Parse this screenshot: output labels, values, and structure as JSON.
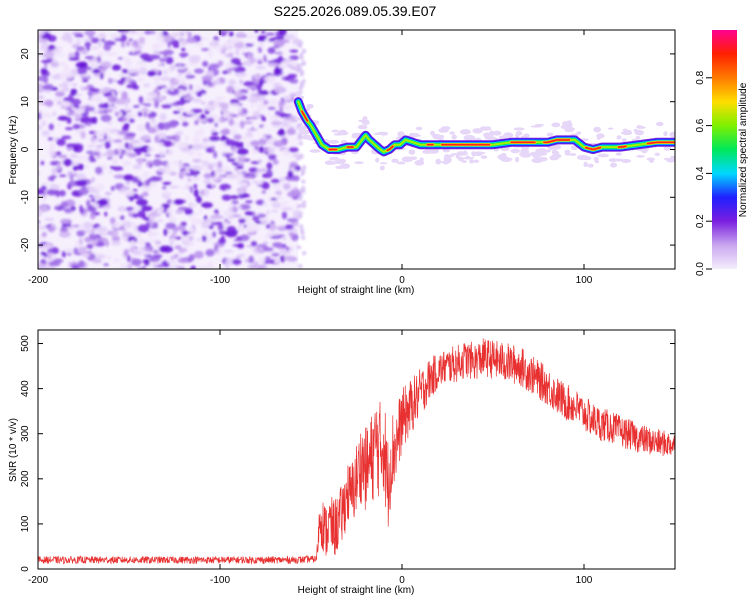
{
  "title": "S225.2026.089.05.39.E07",
  "chart_data": [
    {
      "type": "heatmap",
      "xlabel": "Height of straight line (km)",
      "ylabel": "Frequency (Hz)",
      "xlim": [
        -200,
        150
      ],
      "ylim": [
        -25,
        25
      ],
      "xticks": [
        -200,
        -100,
        0,
        100
      ],
      "xtick_labels": [
        "-200",
        "-100",
        "0",
        "100"
      ],
      "yticks": [
        -20,
        -10,
        0,
        10,
        20
      ],
      "ytick_labels": [
        "-20",
        "-10",
        "0",
        "10",
        "20"
      ],
      "noise_region_x": [
        -200,
        -57
      ],
      "signal_ridge": {
        "x": [
          -57,
          -55,
          -52,
          -50,
          -47,
          -44,
          -40,
          -35,
          -30,
          -25,
          -20,
          -18,
          -15,
          -12,
          -10,
          -7,
          -4,
          -1,
          2,
          6,
          10,
          14,
          20,
          30,
          40,
          50,
          60,
          70,
          80,
          85,
          90,
          95,
          100,
          105,
          110,
          120,
          130,
          140,
          150
        ],
        "y": [
          10,
          8,
          6,
          5,
          3,
          1,
          0,
          0,
          0.5,
          0.5,
          3,
          2,
          1,
          0,
          -0.5,
          0,
          1,
          1,
          2,
          1.5,
          1,
          1,
          1,
          1,
          1,
          1,
          1.5,
          1.5,
          1.5,
          2,
          2,
          2,
          0.5,
          0,
          0.5,
          0.5,
          1,
          1.5,
          1.5
        ],
        "peak_amplitude_segments": [
          [
            -55,
            -52
          ],
          [
            -40,
            -36
          ],
          [
            -30,
            -27
          ],
          [
            -8,
            -5
          ],
          [
            14,
            17
          ],
          [
            22,
            48
          ],
          [
            60,
            73
          ],
          [
            78,
            92
          ],
          [
            101,
            109
          ],
          [
            119,
            123
          ],
          [
            135,
            150
          ]
        ]
      },
      "colorbar": {
        "label": "Normalized spectral amplitude",
        "range": [
          0,
          1
        ],
        "ticks": [
          0.0,
          0.2,
          0.4,
          0.6,
          0.8
        ],
        "tick_labels": [
          "0.0",
          "0.2",
          "0.4",
          "0.6",
          "0.8"
        ],
        "colors": [
          "#f4eefc",
          "#c9a6ef",
          "#7a1fe0",
          "#2020ff",
          "#00d8ff",
          "#00e85a",
          "#7ef000",
          "#ffdd00",
          "#ff7a00",
          "#ff2000",
          "#ff0090"
        ]
      }
    },
    {
      "type": "line",
      "xlabel": "Height of straight line (km)",
      "ylabel": "SNR (10 * v/v)",
      "xlim": [
        -200,
        150
      ],
      "ylim": [
        0,
        530
      ],
      "xticks": [
        -200,
        -100,
        0,
        100
      ],
      "xtick_labels": [
        "-200",
        "-100",
        "0",
        "100"
      ],
      "yticks": [
        0,
        100,
        200,
        300,
        400,
        500
      ],
      "ytick_labels": [
        "0",
        "100",
        "200",
        "300",
        "400",
        "500"
      ],
      "series": [
        {
          "name": "SNR",
          "color": "#e83030",
          "envelope": {
            "x": [
              -200,
              -150,
              -100,
              -60,
              -47,
              -45,
              -42,
              -40,
              -37,
              -33,
              -30,
              -28,
              -25,
              -22,
              -20,
              -17,
              -14,
              -12,
              -10,
              -8,
              -6,
              -3,
              0,
              5,
              10,
              15,
              20,
              25,
              30,
              35,
              40,
              45,
              50,
              55,
              60,
              65,
              70,
              75,
              80,
              85,
              90,
              95,
              100,
              105,
              110,
              115,
              120,
              125,
              130,
              135,
              140,
              145,
              150
            ],
            "y": [
              20,
              20,
              20,
              20,
              22,
              120,
              80,
              100,
              90,
              120,
              170,
              160,
              200,
              240,
              220,
              240,
              280,
              260,
              290,
              180,
              250,
              280,
              330,
              360,
              390,
              420,
              440,
              450,
              455,
              465,
              460,
              470,
              465,
              460,
              455,
              450,
              435,
              420,
              405,
              385,
              370,
              360,
              345,
              330,
              320,
              315,
              305,
              298,
              290,
              285,
              280,
              278,
              275
            ]
          },
          "noise_amplitude": {
            "x": [
              -200,
              -47,
              -45,
              -30,
              -10,
              0,
              20,
              60,
              100,
              150
            ],
            "y": [
              8,
              8,
              60,
              70,
              120,
              70,
              40,
              45,
              40,
              28
            ]
          }
        }
      ]
    }
  ]
}
